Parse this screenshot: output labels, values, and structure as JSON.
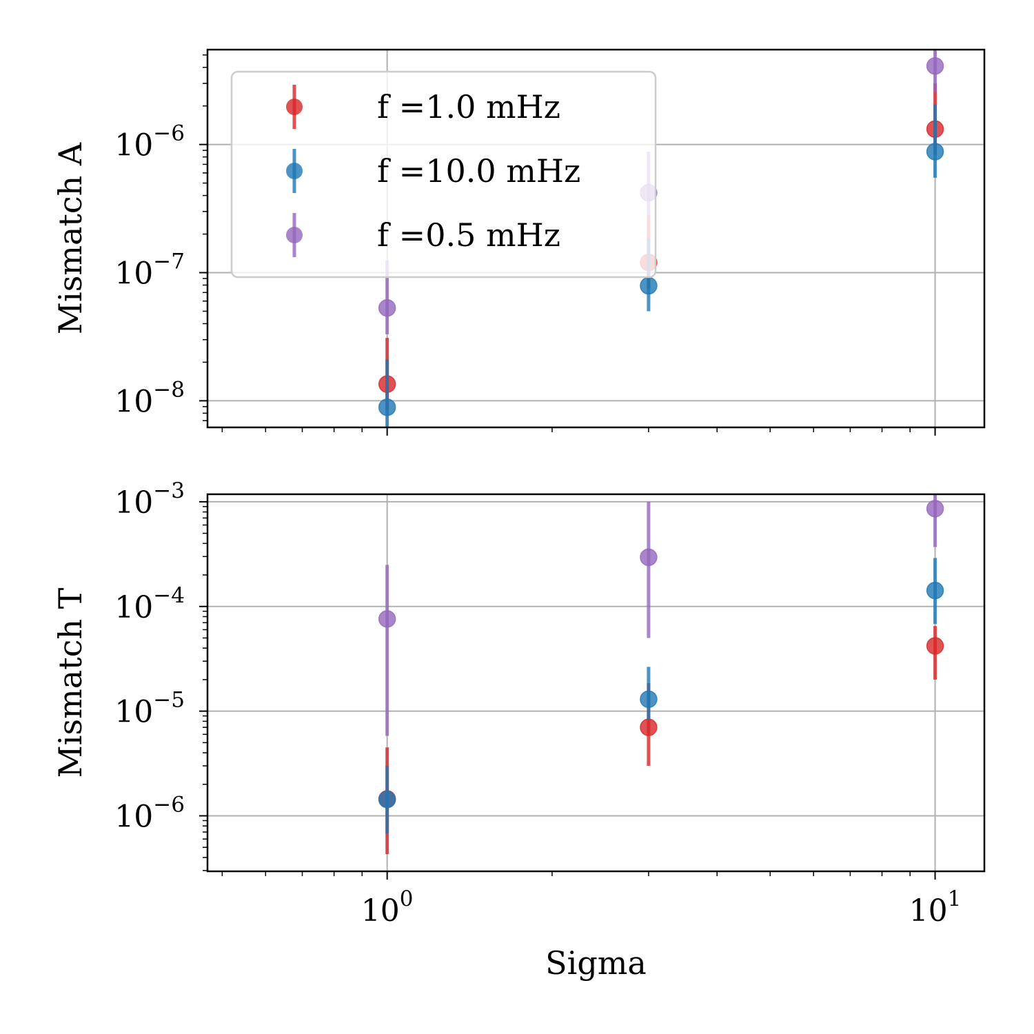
{
  "chart_data": [
    {
      "type": "scatter",
      "panel": "top",
      "xscale": "log",
      "yscale": "log",
      "xlim": [
        0.47,
        12.3
      ],
      "ylim": [
        6.2e-09,
        5.5e-06
      ],
      "ylabel": "Mismatch A",
      "xlabel": "",
      "grid": true,
      "legend": "upper-left",
      "yticks": [
        {
          "mantissa": "10",
          "exponent": "−8",
          "value": 1e-08
        },
        {
          "mantissa": "10",
          "exponent": "−7",
          "value": 1e-07
        },
        {
          "mantissa": "10",
          "exponent": "−6",
          "value": 1e-06
        }
      ],
      "x": [
        1,
        3,
        10
      ],
      "series": [
        {
          "name": "f =1.0 mHz",
          "color": "#d62728",
          "values": [
            1.35e-08,
            1.2e-07,
            1.32e-06
          ],
          "err_low": [
            8.5e-09,
            7.5e-08,
            8.3e-07
          ],
          "err_high": [
            3.1e-08,
            2.8e-07,
            3e-06
          ]
        },
        {
          "name": "f =10.0 mHz",
          "color": "#1f77b4",
          "values": [
            8.9e-09,
            7.9e-08,
            8.8e-07
          ],
          "err_low": [
            5.5e-09,
            5e-08,
            5.5e-07
          ],
          "err_high": [
            2.1e-08,
            1.85e-07,
            2.05e-06
          ]
        },
        {
          "name": "f =0.5 mHz",
          "color": "#9467bd",
          "values": [
            5.3e-08,
            4.2e-07,
            4.1e-06
          ],
          "err_low": [
            3.3e-08,
            2.65e-07,
            2.55e-06
          ],
          "err_high": [
            1.25e-07,
            8.8e-07,
            6e-06
          ]
        }
      ]
    },
    {
      "type": "scatter",
      "panel": "bottom",
      "xscale": "log",
      "yscale": "log",
      "xlim": [
        0.47,
        12.3
      ],
      "ylim": [
        2.95e-07,
        0.00118
      ],
      "ylabel": "Mismatch T",
      "xlabel": "Sigma",
      "grid": true,
      "yticks": [
        {
          "mantissa": "10",
          "exponent": "−6",
          "value": 1e-06
        },
        {
          "mantissa": "10",
          "exponent": "−5",
          "value": 1e-05
        },
        {
          "mantissa": "10",
          "exponent": "−4",
          "value": 0.0001
        },
        {
          "mantissa": "10",
          "exponent": "−3",
          "value": 0.001
        }
      ],
      "xticks": [
        {
          "mantissa": "10",
          "exponent": "0",
          "value": 1
        },
        {
          "mantissa": "10",
          "exponent": "1",
          "value": 10
        }
      ],
      "x": [
        1,
        3,
        10
      ],
      "series": [
        {
          "name": "f =1.0 mHz",
          "color": "#d62728",
          "values": [
            1.45e-06,
            7e-06,
            4.2e-05
          ],
          "err_low": [
            4.3e-07,
            3e-06,
            2e-05
          ],
          "err_high": [
            4.5e-06,
            1.85e-05,
            6.5e-05
          ]
        },
        {
          "name": "f =10.0 mHz",
          "color": "#1f77b4",
          "values": [
            1.43e-06,
            1.3e-05,
            0.000142
          ],
          "err_low": [
            6.8e-07,
            8.3e-06,
            6.8e-05
          ],
          "err_high": [
            3e-06,
            2.65e-05,
            0.00029
          ]
        },
        {
          "name": "f =0.5 mHz",
          "color": "#9467bd",
          "values": [
            7.6e-05,
            0.000295,
            0.00086
          ],
          "err_low": [
            5.8e-06,
            5e-05,
            0.00037
          ],
          "err_high": [
            0.00025,
            0.001,
            0.00118
          ]
        }
      ]
    }
  ]
}
